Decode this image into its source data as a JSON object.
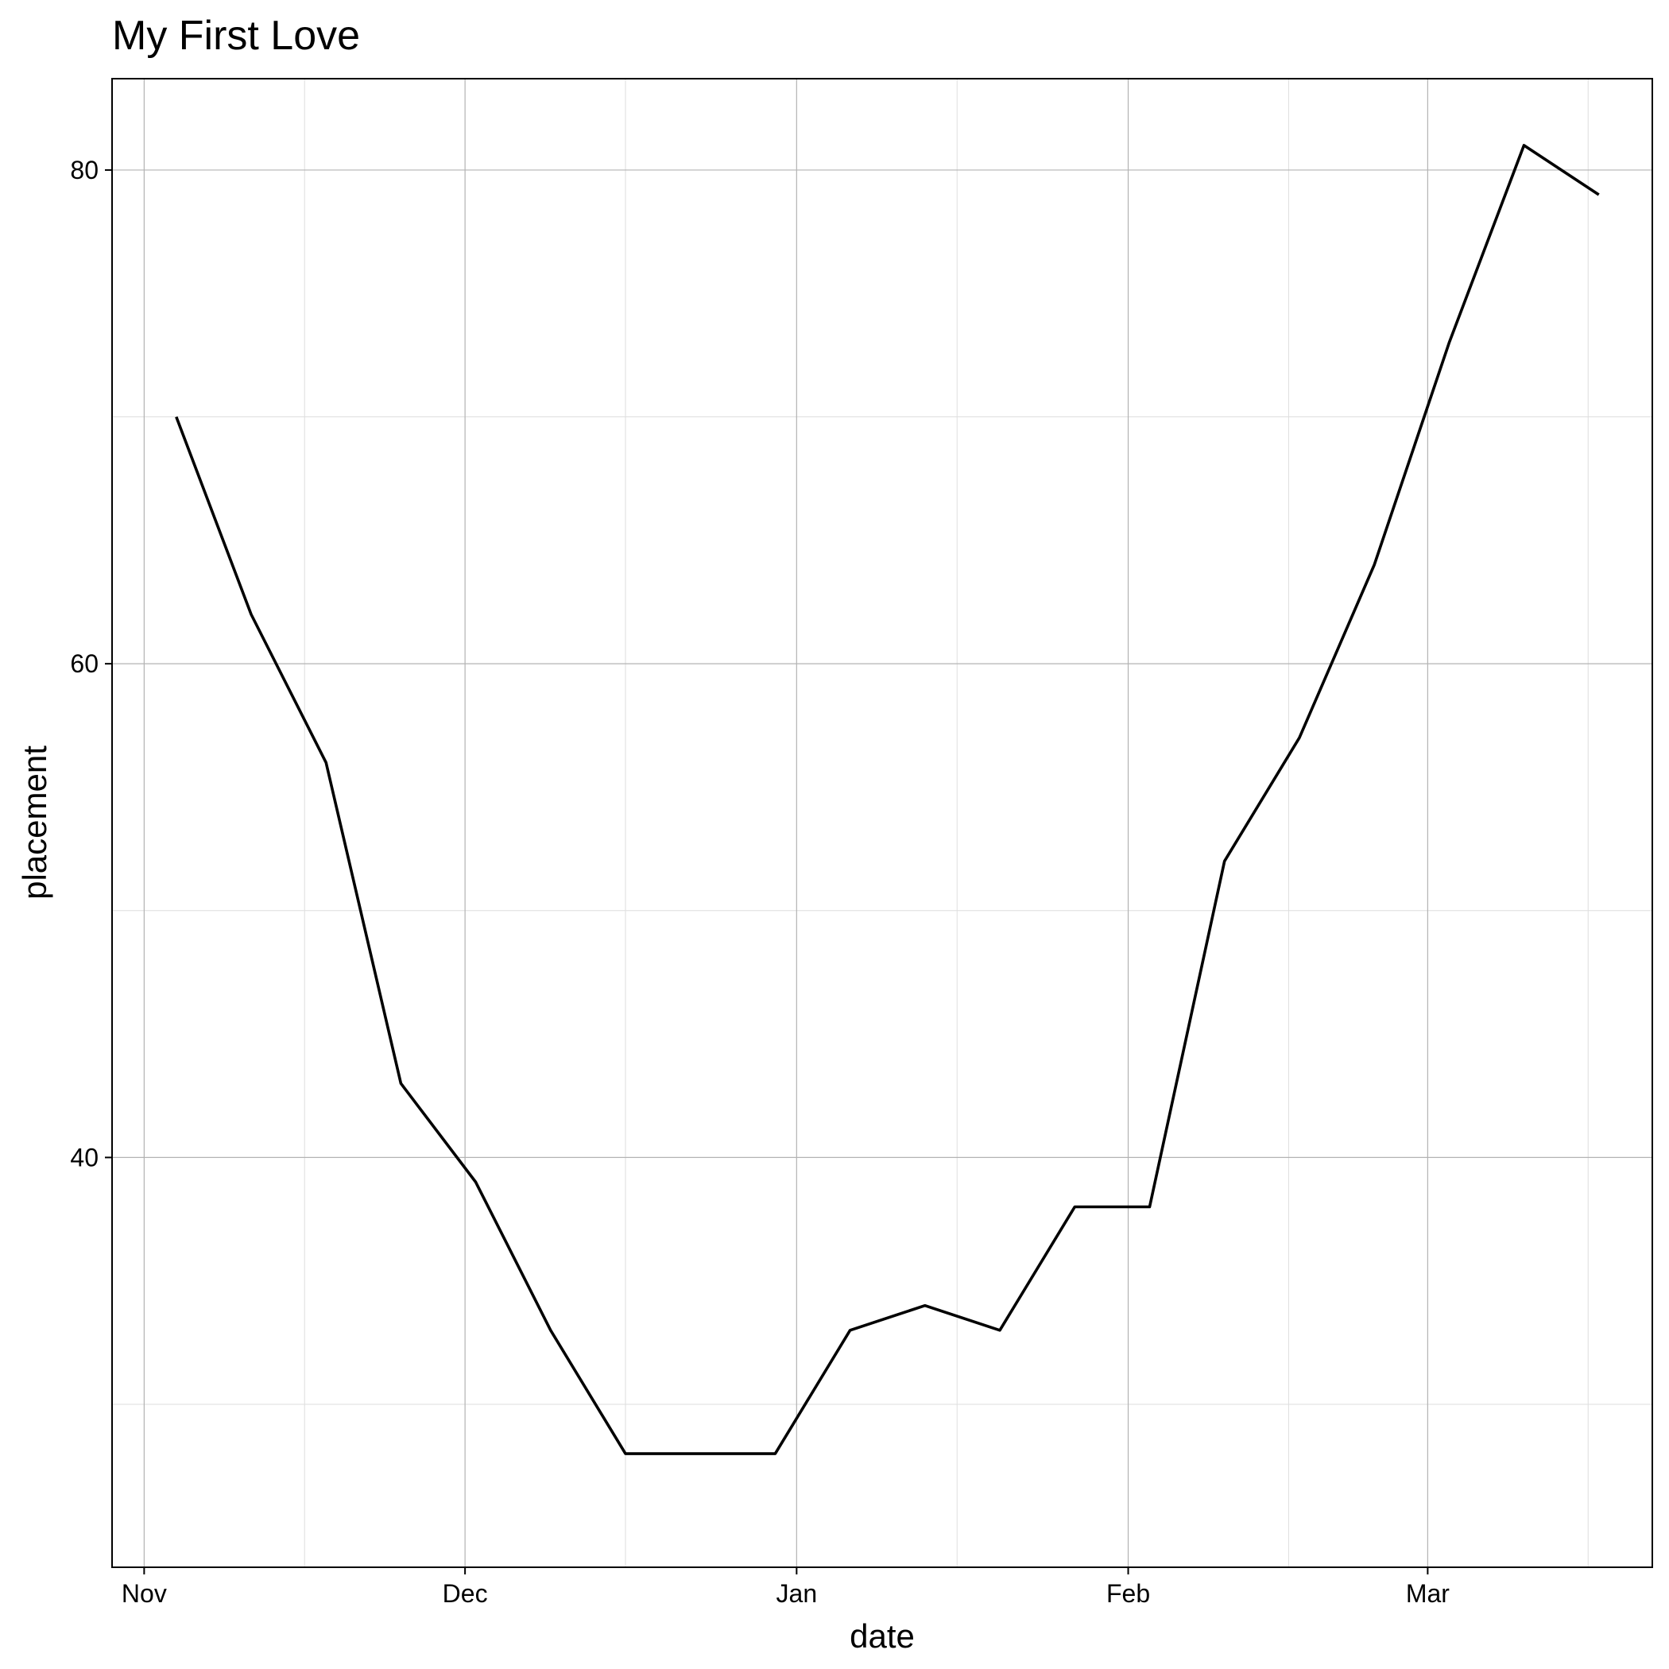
{
  "chart_data": {
    "type": "line",
    "title": "My First Love",
    "xlabel": "date",
    "ylabel": "placement",
    "x_axis_type": "date",
    "xlim": [
      "1977-10-29",
      "1978-03-22"
    ],
    "ylim": [
      23.4,
      83.7
    ],
    "x_ticks": [
      {
        "label": "Nov",
        "date": "1977-11-01"
      },
      {
        "label": "Dec",
        "date": "1977-12-01"
      },
      {
        "label": "Jan",
        "date": "1978-01-01"
      },
      {
        "label": "Feb",
        "date": "1978-02-01"
      },
      {
        "label": "Mar",
        "date": "1978-03-01"
      }
    ],
    "x_minor_grid": [
      "1977-11-16",
      "1977-12-16",
      "1978-01-16",
      "1978-02-16",
      "1978-03-16"
    ],
    "y_ticks": [
      40,
      60,
      80
    ],
    "y_minor_grid": [
      30,
      50,
      70
    ],
    "grid": true,
    "legend": "none",
    "series": [
      {
        "color": "#000000",
        "x": [
          "1977-11-04",
          "1977-11-11",
          "1977-11-18",
          "1977-11-25",
          "1977-12-02",
          "1977-12-09",
          "1977-12-16",
          "1977-12-23",
          "1977-12-30",
          "1978-01-06",
          "1978-01-13",
          "1978-01-20",
          "1978-01-27",
          "1978-02-03",
          "1978-02-10",
          "1978-02-17",
          "1978-02-24",
          "1978-03-03",
          "1978-03-10",
          "1978-03-17"
        ],
        "y": [
          70,
          62,
          56,
          43,
          39,
          33,
          28,
          28,
          28,
          33,
          34,
          33,
          38,
          38,
          52,
          57,
          64,
          73,
          81,
          79
        ]
      }
    ]
  }
}
